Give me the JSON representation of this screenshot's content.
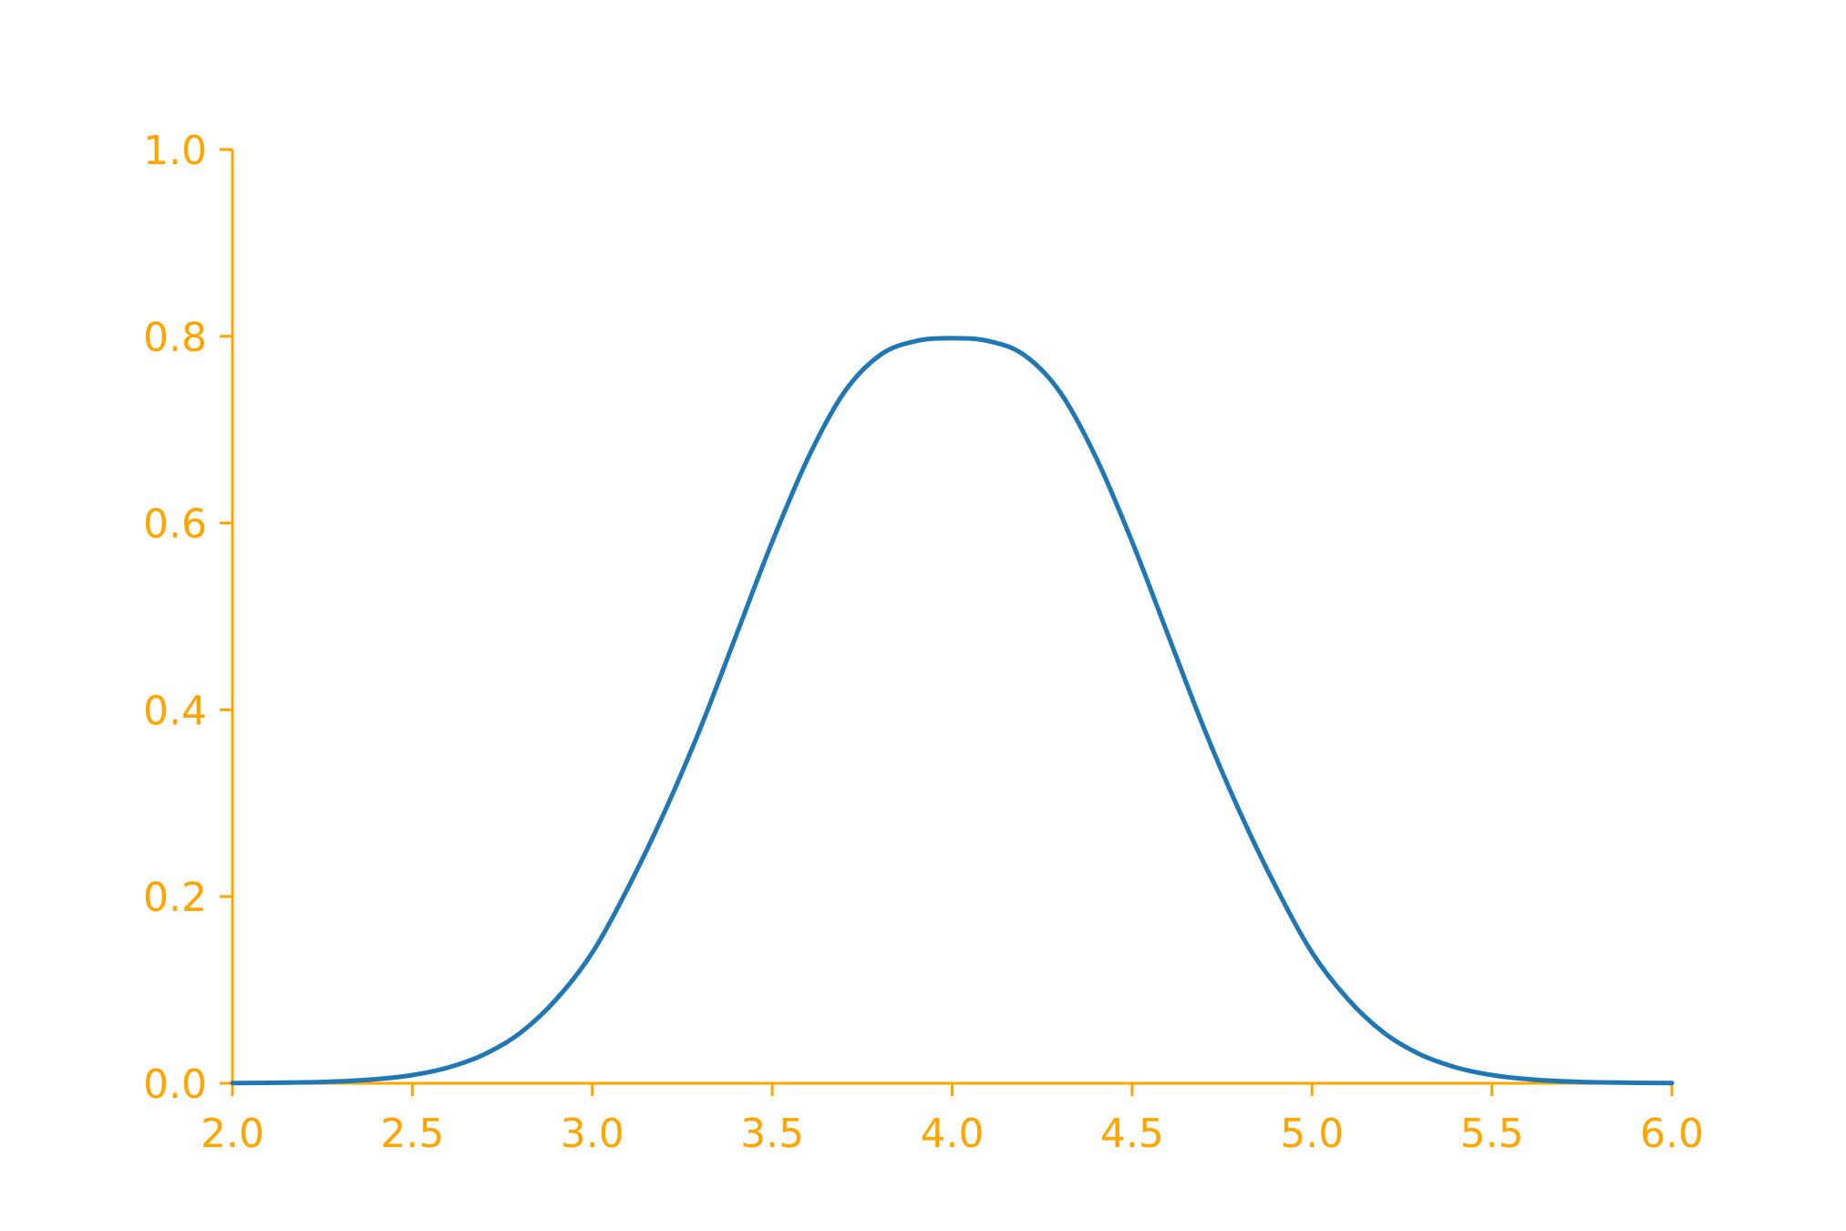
{
  "chart_data": {
    "type": "line",
    "title": "",
    "xlabel": "",
    "ylabel": "",
    "xlim": [
      2.0,
      6.0
    ],
    "ylim": [
      0.0,
      1.0
    ],
    "grid": false,
    "axis_color": "#FFA500",
    "x_ticks": [
      "2.0",
      "2.5",
      "3.0",
      "3.5",
      "4.0",
      "4.5",
      "5.0",
      "5.5",
      "6.0"
    ],
    "y_ticks": [
      "0.0",
      "0.2",
      "0.4",
      "0.6",
      "0.8",
      "1.0"
    ],
    "series": [
      {
        "name": "",
        "color": "#1f77b4",
        "x": [
          2.0,
          2.1,
          2.2,
          2.3,
          2.4,
          2.5,
          2.6,
          2.7,
          2.8,
          2.9,
          3.0,
          3.1,
          3.2,
          3.3,
          3.4,
          3.5,
          3.6,
          3.7,
          3.8,
          3.9,
          4.0,
          4.1,
          4.2,
          4.3,
          4.4,
          4.5,
          4.6,
          4.7,
          4.8,
          4.9,
          5.0,
          5.1,
          5.2,
          5.3,
          5.4,
          5.5,
          5.6,
          5.7,
          5.8,
          5.9,
          6.0
        ],
        "y": [
          0.0003,
          0.0005,
          0.001,
          0.0021,
          0.0044,
          0.0088,
          0.017,
          0.031,
          0.054,
          0.09,
          0.14,
          0.21,
          0.29,
          0.38,
          0.48,
          0.58,
          0.67,
          0.74,
          0.78,
          0.795,
          0.798,
          0.795,
          0.78,
          0.74,
          0.67,
          0.58,
          0.48,
          0.38,
          0.29,
          0.21,
          0.14,
          0.09,
          0.054,
          0.031,
          0.017,
          0.0088,
          0.0044,
          0.0021,
          0.001,
          0.0005,
          0.0003
        ]
      }
    ]
  }
}
